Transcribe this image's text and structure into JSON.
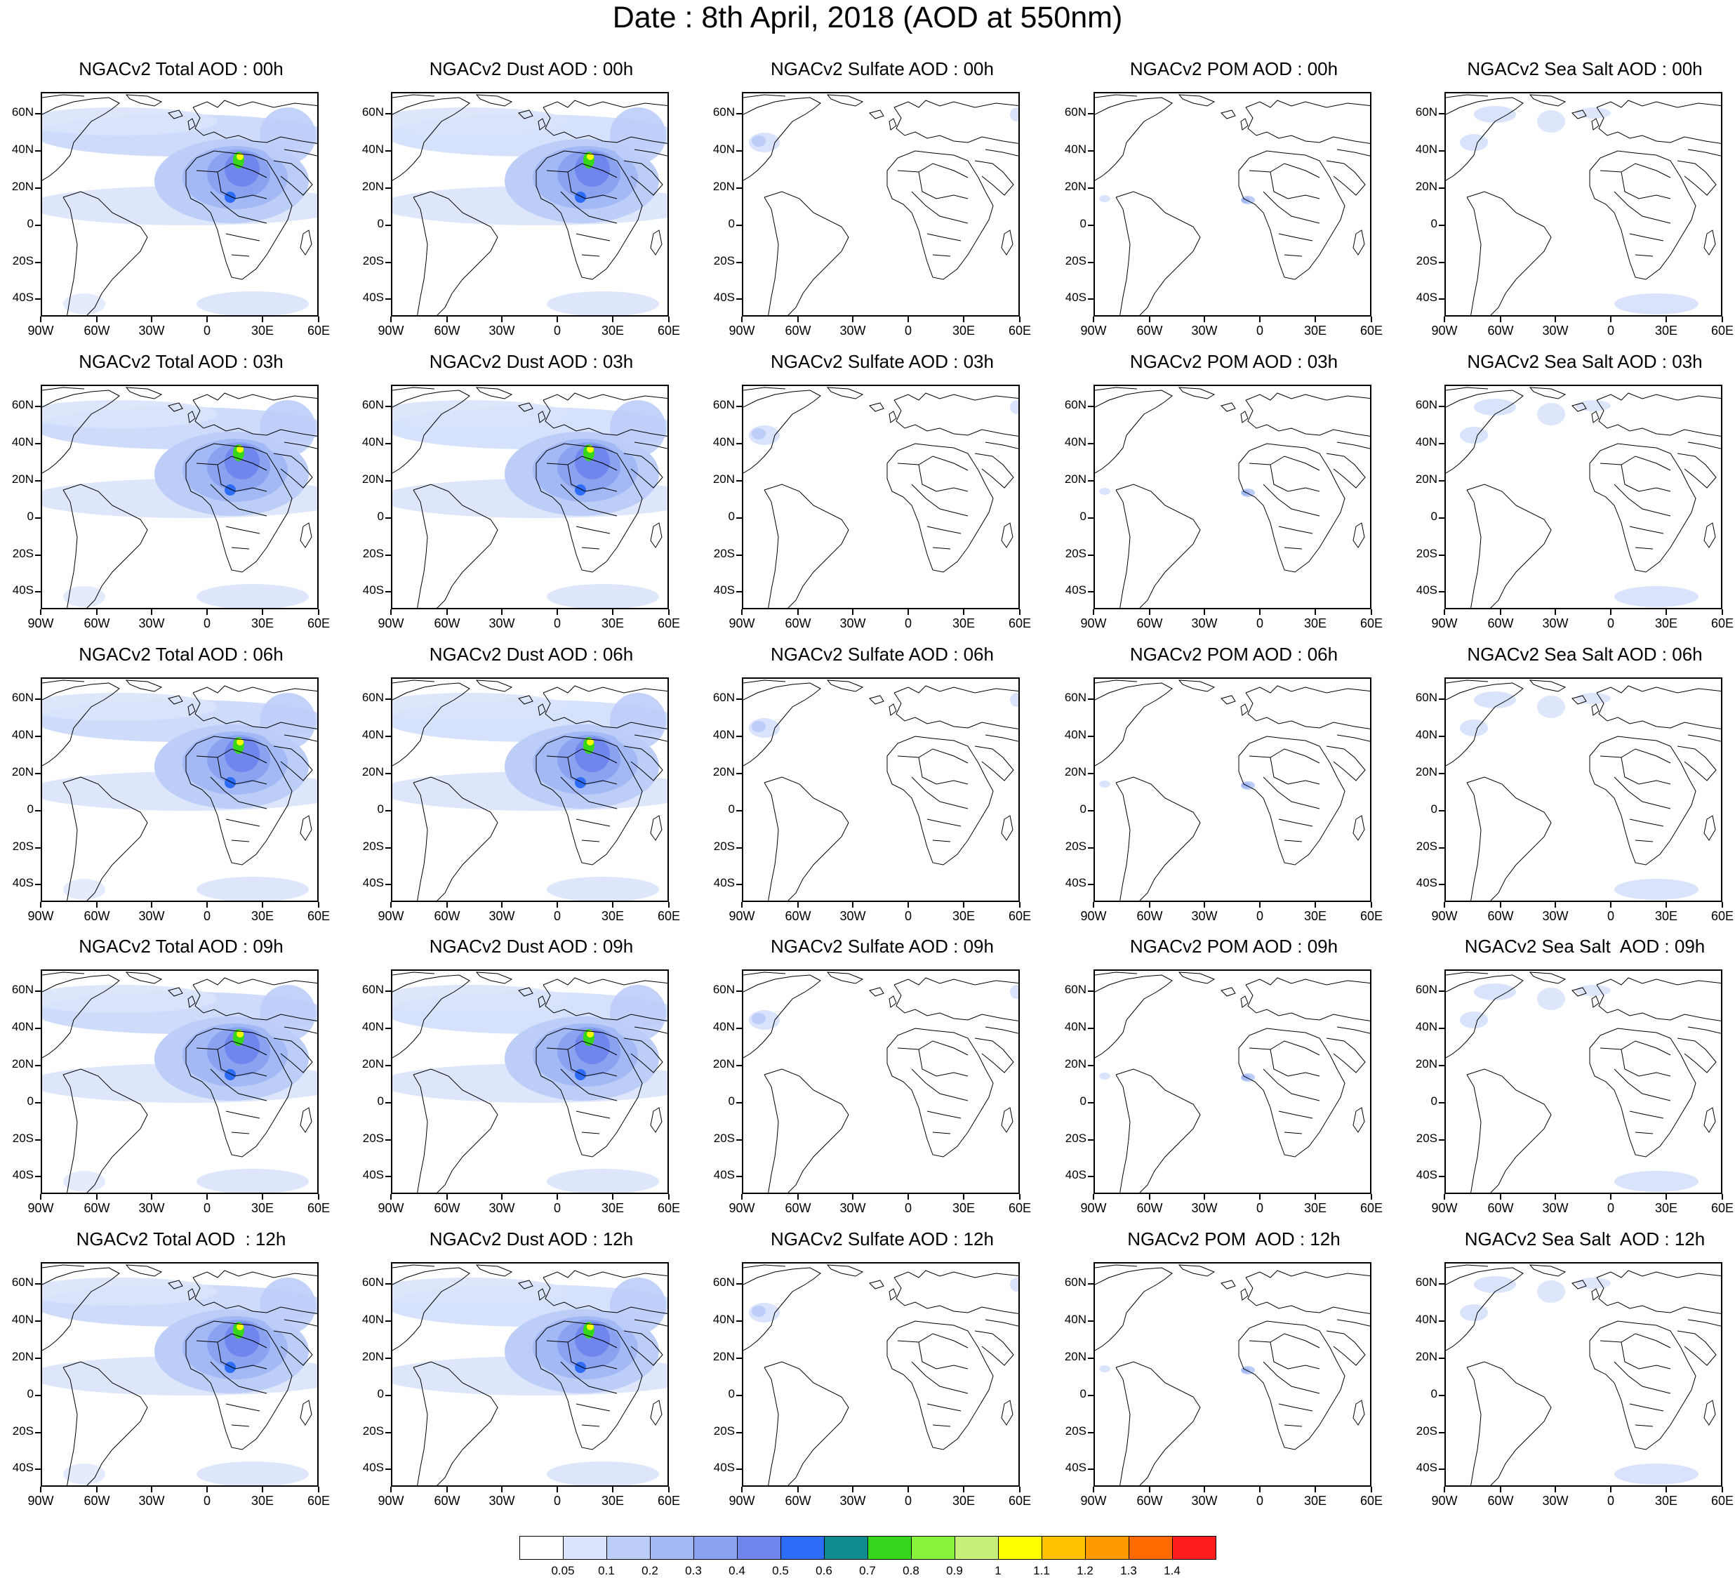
{
  "title": "Date : 8th April, 2018 (AOD at 550nm)",
  "lat_labels": [
    "60N",
    "40N",
    "20N",
    "0",
    "20S",
    "40S"
  ],
  "lon_labels": [
    "90W",
    "60W",
    "30W",
    "0",
    "30E",
    "60E"
  ],
  "panel_titles": [
    [
      "NGACv2 Total AOD : 00h",
      "NGACv2 Dust AOD : 00h",
      "NGACv2 Sulfate AOD : 00h",
      "NGACv2 POM AOD : 00h",
      "NGACv2 Sea Salt AOD : 00h"
    ],
    [
      "NGACv2 Total AOD : 03h",
      "NGACv2 Dust AOD : 03h",
      "NGACv2 Sulfate AOD : 03h",
      "NGACv2 POM AOD : 03h",
      "NGACv2 Sea Salt AOD : 03h"
    ],
    [
      "NGACv2 Total AOD : 06h",
      "NGACv2 Dust AOD : 06h",
      "NGACv2 Sulfate AOD : 06h",
      "NGACv2 POM AOD : 06h",
      "NGACv2 Sea Salt AOD : 06h"
    ],
    [
      "NGACv2 Total AOD : 09h",
      "NGACv2 Dust AOD : 09h",
      "NGACv2 Sulfate AOD : 09h",
      "NGACv2 POM AOD : 09h",
      "NGACv2 Sea Salt  AOD : 09h"
    ],
    [
      "NGACv2 Total AOD  : 12h",
      "NGACv2 Dust AOD : 12h",
      "NGACv2 Sulfate AOD : 12h",
      "NGACv2 POM  AOD : 12h",
      "NGACv2 Sea Salt  AOD : 12h"
    ]
  ],
  "colorbar": {
    "labels": [
      "0.05",
      "0.1",
      "0.2",
      "0.3",
      "0.4",
      "0.5",
      "0.6",
      "0.7",
      "0.8",
      "0.9",
      "1",
      "1.1",
      "1.2",
      "1.3",
      "1.4"
    ],
    "colors": [
      "#ffffff",
      "#d9e3fb",
      "#bccdf8",
      "#a3b9f5",
      "#8aa3f1",
      "#6f86ee",
      "#2d6cf7",
      "#0f8a8f",
      "#35d61b",
      "#86f23c",
      "#c6f07a",
      "#ffff00",
      "#ffc000",
      "#ff9a00",
      "#ff6a00",
      "#ff1c1c"
    ]
  }
}
